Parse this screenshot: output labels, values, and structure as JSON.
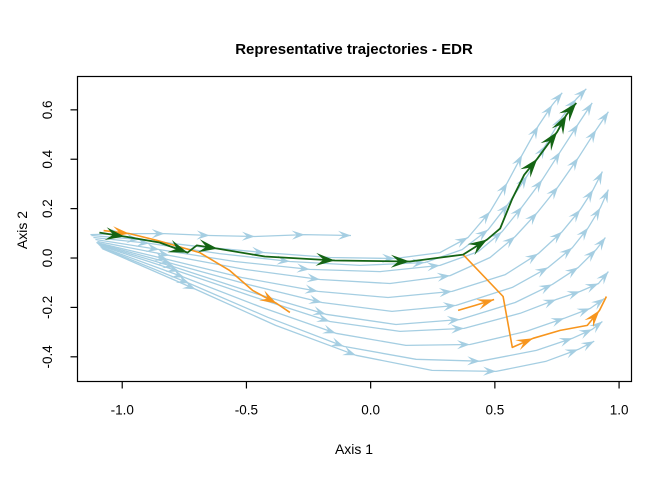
{
  "title": "Representative trajectories - EDR",
  "colors": {
    "blue": "#A5CEE2",
    "green": "#146414",
    "orange": "#F7951D",
    "axis": "#000000",
    "background": "#FFFFFF"
  },
  "chart_data": {
    "type": "trajectory-flow",
    "title": "Representative trajectories - EDR",
    "xlabel": "Axis 1",
    "ylabel": "Axis 2",
    "xlim": [
      -1.18,
      1.05
    ],
    "ylim": [
      -0.5,
      0.735
    ],
    "grid": false,
    "legend": false,
    "x_ticks": [
      {
        "value": -1.0,
        "label": "-1.0"
      },
      {
        "value": -0.5,
        "label": "-0.5"
      },
      {
        "value": 0.0,
        "label": "0.0"
      },
      {
        "value": 0.5,
        "label": "0.5"
      },
      {
        "value": 1.0,
        "label": "1.0"
      }
    ],
    "y_ticks": [
      {
        "value": -0.4,
        "label": "-0.4"
      },
      {
        "value": -0.2,
        "label": "-0.2"
      },
      {
        "value": 0.0,
        "label": "0.0"
      },
      {
        "value": 0.2,
        "label": "0.2"
      },
      {
        "value": 0.4,
        "label": "0.4"
      },
      {
        "value": 0.6,
        "label": "0.6"
      }
    ],
    "series": [
      {
        "name": "background-trajectory-1",
        "role": "background",
        "color": "blue",
        "points": [
          [
            -1.128,
            0.095
          ],
          [
            -0.991,
            0.099
          ],
          [
            -0.829,
            0.099
          ],
          [
            -0.648,
            0.091
          ],
          [
            -0.466,
            0.087
          ],
          [
            -0.265,
            0.095
          ],
          [
            -0.079,
            0.091
          ]
        ],
        "arrows": [
          1,
          2,
          3,
          4,
          5,
          6
        ]
      },
      {
        "name": "background-trajectory-2",
        "role": "background",
        "color": "blue",
        "points": [
          [
            -1.124,
            0.091
          ],
          [
            -0.93,
            0.075
          ],
          [
            -0.688,
            0.046
          ],
          [
            -0.426,
            0.022
          ],
          [
            -0.164,
            0.002
          ],
          [
            0.098,
            -0.002
          ],
          [
            0.279,
            0.022
          ],
          [
            0.392,
            0.083
          ],
          [
            0.481,
            0.188
          ],
          [
            0.55,
            0.305
          ],
          [
            0.61,
            0.418
          ],
          [
            0.675,
            0.535
          ],
          [
            0.731,
            0.62
          ],
          [
            0.771,
            0.669
          ]
        ],
        "arrows": [
          1,
          3,
          5,
          7,
          8,
          9,
          10,
          11,
          12,
          13
        ]
      },
      {
        "name": "background-trajectory-3",
        "role": "background",
        "color": "blue",
        "points": [
          [
            -1.116,
            0.083
          ],
          [
            -0.89,
            0.059
          ],
          [
            -0.608,
            0.018
          ],
          [
            -0.325,
            -0.014
          ],
          [
            -0.043,
            -0.03
          ],
          [
            0.219,
            -0.018
          ],
          [
            0.368,
            0.034
          ],
          [
            0.473,
            0.115
          ],
          [
            0.554,
            0.22
          ],
          [
            0.63,
            0.333
          ],
          [
            0.703,
            0.455
          ],
          [
            0.771,
            0.572
          ],
          [
            0.828,
            0.644
          ],
          [
            0.868,
            0.685
          ]
        ],
        "arrows": [
          1,
          3,
          5,
          7,
          8,
          9,
          10,
          11,
          12,
          13
        ]
      },
      {
        "name": "background-trajectory-4",
        "role": "background",
        "color": "blue",
        "points": [
          [
            -1.108,
            0.075
          ],
          [
            -0.85,
            0.034
          ],
          [
            -0.547,
            -0.014
          ],
          [
            -0.245,
            -0.046
          ],
          [
            0.038,
            -0.055
          ],
          [
            0.279,
            -0.03
          ],
          [
            0.433,
            0.026
          ],
          [
            0.529,
            0.107
          ],
          [
            0.61,
            0.208
          ],
          [
            0.691,
            0.317
          ],
          [
            0.763,
            0.43
          ],
          [
            0.836,
            0.543
          ],
          [
            0.892,
            0.628
          ]
        ],
        "arrows": [
          1,
          3,
          5,
          7,
          8,
          9,
          10,
          11,
          12
        ]
      },
      {
        "name": "background-trajectory-5",
        "role": "background",
        "color": "blue",
        "points": [
          [
            -1.1,
            0.067
          ],
          [
            -0.809,
            0.01
          ],
          [
            -0.507,
            -0.046
          ],
          [
            -0.204,
            -0.087
          ],
          [
            0.078,
            -0.103
          ],
          [
            0.32,
            -0.071
          ],
          [
            0.481,
            0.002
          ],
          [
            0.582,
            0.087
          ],
          [
            0.671,
            0.184
          ],
          [
            0.755,
            0.289
          ],
          [
            0.836,
            0.406
          ],
          [
            0.908,
            0.519
          ],
          [
            0.957,
            0.592
          ]
        ],
        "arrows": [
          1,
          3,
          5,
          7,
          8,
          9,
          10,
          11,
          12
        ]
      },
      {
        "name": "background-trajectory-6",
        "role": "background",
        "color": "blue",
        "points": [
          [
            -1.104,
            0.063
          ],
          [
            -0.817,
            -0.006
          ],
          [
            -0.519,
            -0.079
          ],
          [
            -0.212,
            -0.135
          ],
          [
            0.07,
            -0.16
          ],
          [
            0.328,
            -0.135
          ],
          [
            0.542,
            -0.067
          ],
          [
            0.675,
            0.018
          ],
          [
            0.771,
            0.107
          ],
          [
            0.844,
            0.196
          ],
          [
            0.896,
            0.277
          ],
          [
            0.933,
            0.35
          ]
        ],
        "arrows": [
          1,
          3,
          5,
          7,
          8,
          9,
          10,
          11
        ]
      },
      {
        "name": "background-trajectory-7",
        "role": "background",
        "color": "blue",
        "points": [
          [
            -1.1,
            0.059
          ],
          [
            -0.801,
            -0.022
          ],
          [
            -0.495,
            -0.107
          ],
          [
            -0.196,
            -0.18
          ],
          [
            0.086,
            -0.216
          ],
          [
            0.344,
            -0.192
          ],
          [
            0.57,
            -0.119
          ],
          [
            0.715,
            -0.038
          ],
          [
            0.812,
            0.042
          ],
          [
            0.876,
            0.123
          ],
          [
            0.925,
            0.204
          ],
          [
            0.957,
            0.277
          ]
        ],
        "arrows": [
          1,
          3,
          5,
          7,
          8,
          9,
          10,
          11
        ]
      },
      {
        "name": "background-trajectory-8",
        "role": "background",
        "color": "blue",
        "points": [
          [
            -1.096,
            0.055
          ],
          [
            -0.785,
            -0.038
          ],
          [
            -0.479,
            -0.139
          ],
          [
            -0.18,
            -0.228
          ],
          [
            0.102,
            -0.269
          ],
          [
            0.36,
            -0.249
          ],
          [
            0.582,
            -0.18
          ],
          [
            0.731,
            -0.107
          ],
          [
            0.836,
            -0.038
          ],
          [
            0.908,
            0.034
          ],
          [
            0.945,
            0.083
          ]
        ],
        "arrows": [
          1,
          3,
          5,
          7,
          8,
          9,
          10
        ]
      },
      {
        "name": "background-trajectory-9",
        "role": "background",
        "color": "blue",
        "points": [
          [
            -1.092,
            0.051
          ],
          [
            -0.769,
            -0.055
          ],
          [
            -0.463,
            -0.16
          ],
          [
            -0.164,
            -0.257
          ],
          [
            0.118,
            -0.297
          ],
          [
            0.376,
            -0.285
          ],
          [
            0.602,
            -0.224
          ],
          [
            0.747,
            -0.168
          ],
          [
            0.844,
            -0.135
          ],
          [
            0.917,
            -0.103
          ],
          [
            0.957,
            -0.055
          ]
        ],
        "arrows": [
          1,
          3,
          5,
          7,
          8,
          9,
          10
        ]
      },
      {
        "name": "background-trajectory-10",
        "role": "background",
        "color": "blue",
        "points": [
          [
            -1.088,
            0.046
          ],
          [
            -0.749,
            -0.079
          ],
          [
            -0.438,
            -0.2
          ],
          [
            -0.14,
            -0.305
          ],
          [
            0.142,
            -0.354
          ],
          [
            0.4,
            -0.35
          ],
          [
            0.626,
            -0.297
          ],
          [
            0.779,
            -0.244
          ],
          [
            0.884,
            -0.204
          ],
          [
            0.941,
            -0.164
          ]
        ],
        "arrows": [
          1,
          3,
          5,
          7,
          8,
          9
        ]
      },
      {
        "name": "background-trajectory-11",
        "role": "background",
        "color": "blue",
        "points": [
          [
            -1.084,
            0.042
          ],
          [
            -0.729,
            -0.103
          ],
          [
            -0.414,
            -0.24
          ],
          [
            -0.108,
            -0.358
          ],
          [
            0.183,
            -0.41
          ],
          [
            0.441,
            -0.418
          ],
          [
            0.667,
            -0.374
          ],
          [
            0.812,
            -0.325
          ],
          [
            0.892,
            -0.289
          ],
          [
            0.933,
            -0.257
          ]
        ],
        "arrows": [
          1,
          3,
          5,
          7,
          8,
          9
        ]
      },
      {
        "name": "background-trajectory-12",
        "role": "background",
        "color": "blue",
        "points": [
          [
            -1.08,
            0.038
          ],
          [
            -0.704,
            -0.127
          ],
          [
            -0.382,
            -0.273
          ],
          [
            -0.059,
            -0.394
          ],
          [
            0.247,
            -0.455
          ],
          [
            0.505,
            -0.459
          ],
          [
            0.707,
            -0.418
          ],
          [
            0.836,
            -0.37
          ],
          [
            0.9,
            -0.337
          ]
        ],
        "arrows": [
          1,
          3,
          5,
          7,
          8
        ]
      },
      {
        "name": "representative-trajectory-orange-1",
        "role": "representative",
        "color": "orange",
        "points": [
          [
            -1.075,
            0.111
          ],
          [
            -0.971,
            0.099
          ],
          [
            -0.858,
            0.071
          ],
          [
            -0.688,
            0.022
          ],
          [
            -0.567,
            -0.051
          ],
          [
            -0.475,
            -0.131
          ],
          [
            -0.378,
            -0.184
          ],
          [
            -0.325,
            -0.22
          ]
        ],
        "arrows": [
          1,
          6
        ]
      },
      {
        "name": "representative-trajectory-orange-2",
        "role": "representative",
        "color": "orange",
        "points": [
          [
            0.372,
            0.014
          ],
          [
            0.533,
            -0.156
          ],
          [
            0.57,
            -0.362
          ],
          [
            0.654,
            -0.325
          ],
          [
            0.763,
            -0.293
          ],
          [
            0.872,
            -0.273
          ],
          [
            0.921,
            -0.212
          ],
          [
            0.949,
            -0.156
          ]
        ],
        "arrows": [
          3,
          6
        ]
      },
      {
        "name": "representative-trajectory-orange-3",
        "role": "representative",
        "color": "orange",
        "points": [
          [
            0.352,
            -0.212
          ],
          [
            0.421,
            -0.192
          ],
          [
            0.497,
            -0.168
          ]
        ],
        "arrows": [
          2
        ]
      },
      {
        "name": "representative-trajectory-green",
        "role": "representative",
        "color": "green",
        "points": [
          [
            -1.092,
            0.103
          ],
          [
            -0.991,
            0.087
          ],
          [
            -0.85,
            0.063
          ],
          [
            -0.737,
            0.022
          ],
          [
            -0.7,
            0.051
          ],
          [
            -0.616,
            0.038
          ],
          [
            -0.426,
            0.006
          ],
          [
            -0.144,
            -0.01
          ],
          [
            0.158,
            -0.014
          ],
          [
            0.372,
            0.014
          ],
          [
            0.469,
            0.075
          ],
          [
            0.521,
            0.119
          ],
          [
            0.57,
            0.24
          ],
          [
            0.618,
            0.337
          ],
          [
            0.671,
            0.402
          ],
          [
            0.715,
            0.463
          ],
          [
            0.751,
            0.511
          ],
          [
            0.788,
            0.58
          ],
          [
            0.828,
            0.628
          ]
        ],
        "arrows": [
          1,
          3,
          5,
          7,
          8,
          10,
          14,
          16,
          17,
          18
        ]
      }
    ]
  }
}
